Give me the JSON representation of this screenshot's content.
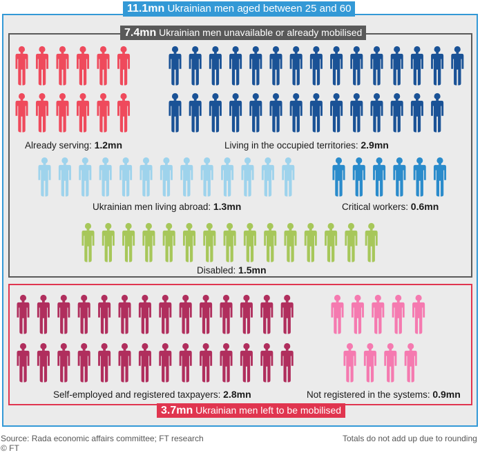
{
  "title": {
    "value": "11.1mn",
    "text": "Ukrainian men aged between 25 and 60"
  },
  "unavailable": {
    "value": "7.4mn",
    "text": "Ukrainian men unavailable or already mobilised"
  },
  "remaining": {
    "value": "3.7mn",
    "text": "Ukrainian men left to be mobilised"
  },
  "colors": {
    "outer": "#3399d6",
    "unavailable": "#595959",
    "remaining": "#e0354f",
    "background": "#ebebeb"
  },
  "chart_data": {
    "type": "pictogram",
    "unit": "mn",
    "groups": [
      {
        "label": "Already serving:",
        "value": 1.2,
        "display": "1.2mn",
        "color": "#ef4a5c",
        "section": "unavailable"
      },
      {
        "label": "Living in the occupied territories:",
        "value": 2.9,
        "display": "2.9mn",
        "color": "#1a5296",
        "section": "unavailable"
      },
      {
        "label": "Ukrainian men living abroad:",
        "value": 1.3,
        "display": "1.3mn",
        "color": "#9ed3ec",
        "section": "unavailable"
      },
      {
        "label": "Critical workers:",
        "value": 0.6,
        "display": "0.6mn",
        "color": "#2a8bcb",
        "section": "unavailable"
      },
      {
        "label": "Disabled:",
        "value": 1.5,
        "display": "1.5mn",
        "color": "#a7c75a",
        "section": "unavailable"
      },
      {
        "label": "Self-employed and registered taxpayers:",
        "value": 2.8,
        "display": "2.8mn",
        "color": "#b02e5d",
        "section": "remaining"
      },
      {
        "label": "Not registered in the systems:",
        "value": 0.9,
        "display": "0.9mn",
        "color": "#f57ab0",
        "section": "remaining"
      }
    ]
  },
  "footer": {
    "source": "Source: Rada economic affairs committee; FT research",
    "note": "Totals do not add up due to rounding",
    "credit": "© FT"
  }
}
